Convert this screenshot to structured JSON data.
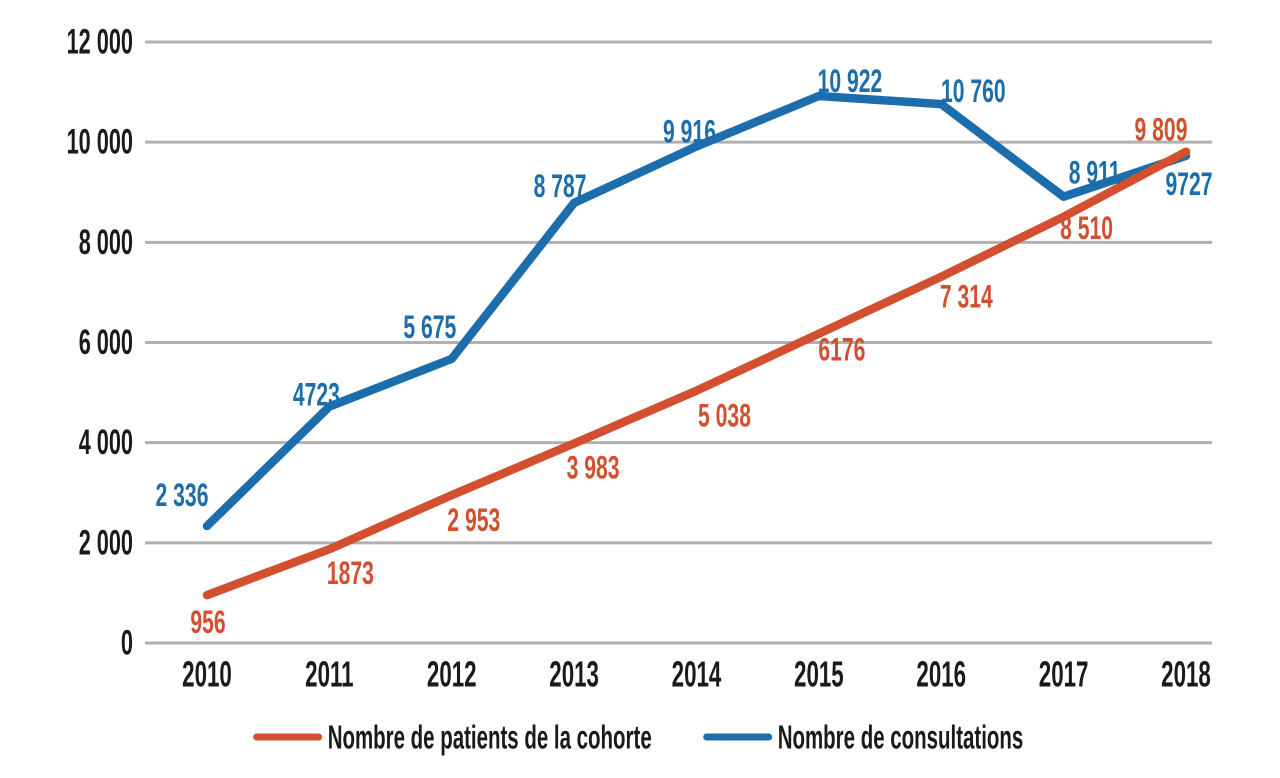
{
  "chart_data": {
    "type": "line",
    "x": [
      2010,
      2011,
      2012,
      2013,
      2014,
      2015,
      2016,
      2017,
      2018
    ],
    "series": [
      {
        "name": "Nombre de patients de la cohorte",
        "color": "#d2502f",
        "values": [
          956,
          1873,
          2953,
          3983,
          5038,
          6176,
          7314,
          8510,
          9809
        ],
        "labels": [
          "956",
          "1873",
          "2 953",
          "3 983",
          "5 038",
          "6176",
          "7 314",
          "8 510",
          "9 809"
        ],
        "label_dx": [
          1,
          21,
          22,
          19,
          28,
          23,
          25,
          23,
          -25
        ],
        "label_dy": [
          27,
          24,
          25,
          24,
          25,
          16,
          20,
          11,
          -22
        ]
      },
      {
        "name": "Nombre de consultations",
        "color": "#1b6dab",
        "values": [
          2336,
          4723,
          5675,
          8787,
          9916,
          10922,
          10760,
          8911,
          9727
        ],
        "labels": [
          "2 336",
          "4723",
          "5 675",
          "8 787",
          "9 916",
          "10 922",
          "10 760",
          "8 911",
          "9727"
        ],
        "label_dx": [
          -25,
          -13,
          -22,
          -14,
          -7,
          31,
          32,
          31,
          3
        ],
        "label_dy": [
          -31,
          -12,
          -32,
          -17,
          -15,
          -15,
          -13,
          -24,
          28
        ]
      }
    ],
    "title": "",
    "xlabel": "",
    "ylabel": "",
    "ylim": [
      0,
      12000
    ],
    "ytick_step": 2000,
    "ytick_labels": [
      "0",
      "2 000",
      "4 000",
      "6 000",
      "8 000",
      "10 000",
      "12 000"
    ],
    "grid": true,
    "grid_color": "#b1b1b1",
    "axis_text_color": "#1a1a1a",
    "legend_position": "bottom"
  }
}
